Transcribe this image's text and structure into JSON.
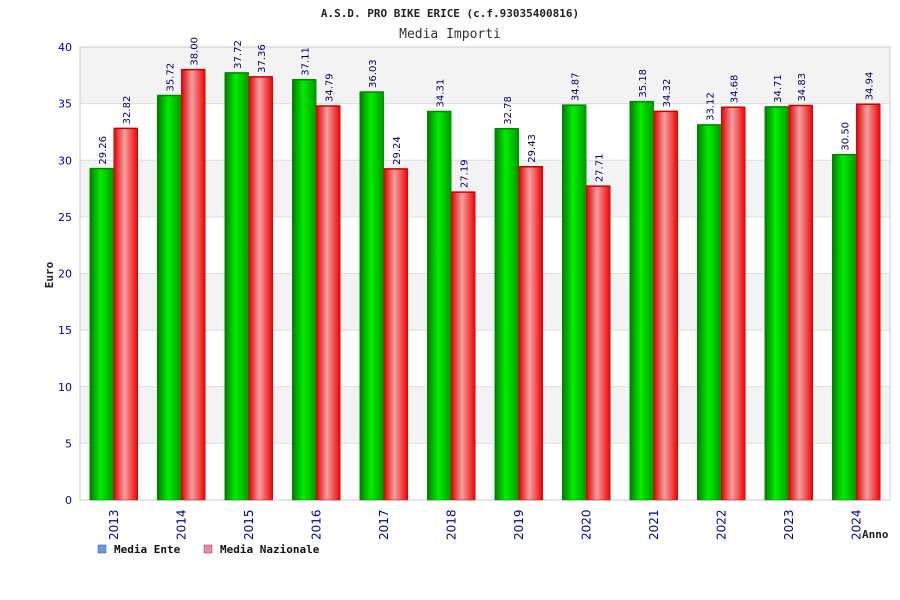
{
  "chart_data": {
    "type": "bar",
    "title": "A.S.D. PRO BIKE ERICE (c.f.93035400816)",
    "subtitle": "Media Importi",
    "ylabel": "Euro",
    "xlabel": "Anno",
    "ylim": [
      0,
      40
    ],
    "yticks": [
      "0",
      "5",
      "10",
      "15",
      "20",
      "25",
      "30",
      "35",
      "40"
    ],
    "grid": true,
    "legend_position": "bottom-left",
    "categories": [
      "2013",
      "2014",
      "2015",
      "2016",
      "2017",
      "2018",
      "2019",
      "2020",
      "2021",
      "2022",
      "2023",
      "2024"
    ],
    "series": [
      {
        "name": "Media Ente",
        "color": "#00aa00",
        "legend_color": "#6699ee",
        "values": [
          29.26,
          35.72,
          37.72,
          37.11,
          36.03,
          34.31,
          32.78,
          34.87,
          35.18,
          33.12,
          34.71,
          30.5
        ],
        "labels": [
          "29.26",
          "35.72",
          "37.72",
          "37.11",
          "36.03",
          "34.31",
          "32.78",
          "34.87",
          "35.18",
          "33.12",
          "34.71",
          "30.50"
        ]
      },
      {
        "name": "Media Nazionale",
        "color": "#ee1111",
        "legend_color": "#ee88aa",
        "values": [
          32.82,
          38.0,
          37.36,
          34.79,
          29.24,
          27.19,
          29.43,
          27.71,
          34.32,
          34.68,
          34.83,
          34.94
        ],
        "labels": [
          "32.82",
          "38.00",
          "37.36",
          "34.79",
          "29.24",
          "27.19",
          "29.43",
          "27.71",
          "34.32",
          "34.68",
          "34.83",
          "34.94"
        ]
      }
    ]
  }
}
